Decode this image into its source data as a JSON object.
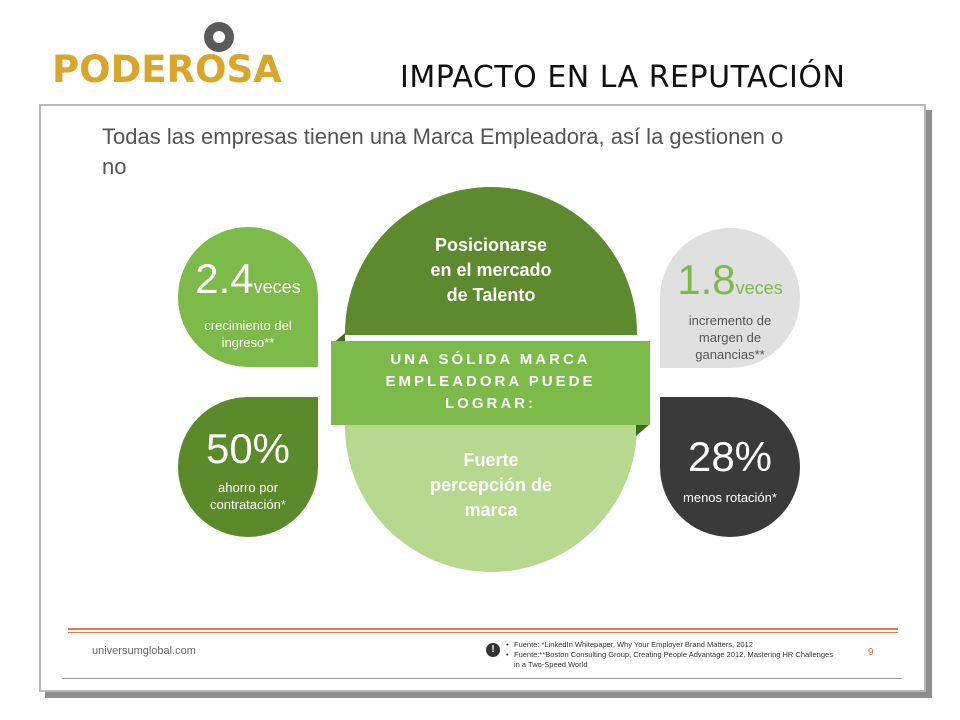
{
  "logo": {
    "text": "PODEROSA",
    "color": "#d9a62a"
  },
  "slide_title": "IMPACTO EN LA REPUTACIÓN",
  "heading": "Todas las empresas tienen una Marca Empleadora, así la gestionen o no",
  "stats": {
    "top_left": {
      "value": "2.4",
      "unit": "veces",
      "desc1": "crecimiento del",
      "desc2": "ingreso**"
    },
    "top_right": {
      "value": "1.8",
      "unit": "veces",
      "desc1": "incremento de",
      "desc2": "margen de",
      "desc3": "ganancias**"
    },
    "bottom_left": {
      "value": "50%",
      "desc1": "ahorro por",
      "desc2": "contratación*"
    },
    "bottom_right": {
      "value": "28%",
      "desc1": "menos rotación*"
    }
  },
  "center": {
    "top_line1": "Posicionarse",
    "top_line2": "en el mercado",
    "top_line3": "de Talento",
    "banner_line1": "UNA SÓLIDA MARCA",
    "banner_line2": "EMPLEADORA PUEDE",
    "banner_line3": "LOGRAR:",
    "bottom_line1": "Fuerte",
    "bottom_line2": "percepción de",
    "bottom_line3": "marca"
  },
  "footer": {
    "site": "universumglobal.com",
    "icon": "!",
    "note1": "Fuente: *LinkedIn Whitepaper, Why Your Employer Brand Matters, 2012",
    "note2": "Fuente:**Boston Consulting Group, Creating People Advantage 2012, Mastering HR Challenges in a Two-Speed World",
    "page": "9"
  },
  "colors": {
    "green": "#7cbb49",
    "dark_green": "#5d8a2f",
    "light_green": "#b6d88f",
    "gray": "#e0e0e0",
    "charcoal": "#3a3a3a",
    "accent": "#e07b4e"
  }
}
